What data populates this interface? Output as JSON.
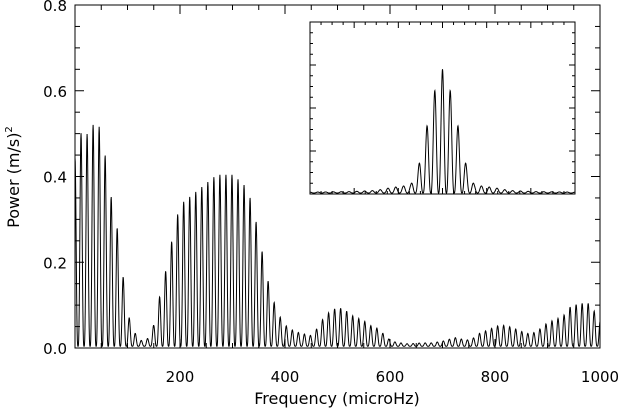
{
  "chart_data": {
    "type": "line",
    "title": "",
    "xlabel": "Frequency (microHz)",
    "ylabel": "Power (m/s)",
    "ylabel_superscript": "2",
    "xlim": [
      0,
      1000
    ],
    "ylim": [
      0.0,
      0.8
    ],
    "x_ticks": [
      200,
      400,
      600,
      800,
      1000
    ],
    "x_tick_labels": [
      "200",
      "400",
      "600",
      "800",
      "1000"
    ],
    "y_ticks": [
      0.0,
      0.2,
      0.4,
      0.6,
      0.8
    ],
    "y_tick_labels": [
      "0.0",
      "0.2",
      "0.4",
      "0.6",
      "0.8"
    ],
    "grid": false,
    "legend": "none",
    "series": [
      {
        "color": "#000000",
        "style": "oscillating sidelobe pattern (spectral window)",
        "fringe_spacing": 11.5,
        "envelope": {
          "x": [
            0,
            10,
            20,
            30,
            40,
            50,
            60,
            70,
            80,
            90,
            100,
            110,
            120,
            130,
            140,
            150,
            160,
            170,
            180,
            190,
            200,
            210,
            220,
            230,
            240,
            250,
            260,
            270,
            280,
            290,
            300,
            310,
            320,
            330,
            340,
            350,
            360,
            370,
            380,
            390,
            400,
            410,
            420,
            430,
            440,
            450,
            460,
            470,
            480,
            490,
            500,
            510,
            520,
            530,
            540,
            550,
            560,
            570,
            580,
            590,
            600,
            610,
            620,
            630,
            640,
            650,
            660,
            670,
            680,
            690,
            700,
            710,
            720,
            730,
            740,
            750,
            760,
            770,
            780,
            790,
            800,
            810,
            820,
            830,
            840,
            850,
            860,
            870,
            880,
            890,
            900,
            910,
            920,
            930,
            940,
            950,
            960,
            970,
            980,
            990,
            1000
          ],
          "y": [
            0.44,
            0.5,
            0.48,
            0.53,
            0.5,
            0.52,
            0.42,
            0.34,
            0.28,
            0.18,
            0.08,
            0.04,
            0.02,
            0.01,
            0.02,
            0.05,
            0.11,
            0.16,
            0.22,
            0.28,
            0.33,
            0.34,
            0.35,
            0.36,
            0.37,
            0.38,
            0.39,
            0.4,
            0.4,
            0.4,
            0.4,
            0.39,
            0.38,
            0.36,
            0.32,
            0.26,
            0.2,
            0.14,
            0.1,
            0.07,
            0.05,
            0.04,
            0.035,
            0.03,
            0.028,
            0.025,
            0.04,
            0.06,
            0.075,
            0.085,
            0.09,
            0.088,
            0.08,
            0.07,
            0.065,
            0.06,
            0.05,
            0.045,
            0.04,
            0.025,
            0.015,
            0.01,
            0.008,
            0.006,
            0.006,
            0.007,
            0.008,
            0.008,
            0.008,
            0.01,
            0.012,
            0.015,
            0.02,
            0.02,
            0.015,
            0.015,
            0.02,
            0.03,
            0.035,
            0.04,
            0.045,
            0.05,
            0.048,
            0.045,
            0.04,
            0.035,
            0.03,
            0.03,
            0.035,
            0.045,
            0.055,
            0.06,
            0.065,
            0.07,
            0.09,
            0.095,
            0.1,
            0.1,
            0.1,
            0.08,
            0.06
          ]
        }
      }
    ],
    "inset": {
      "type": "line",
      "axis_labels": false,
      "series": [
        {
          "color": "#000000",
          "style": "spectral window peak with sidelobes",
          "peak_at_fraction": 0.5,
          "peak_relative_height": 0.75,
          "fringe_count_across": 34,
          "envelope": {
            "x": [
              0.0,
              0.15,
              0.25,
              0.3,
              0.35,
              0.38,
              0.4,
              0.42,
              0.44,
              0.46,
              0.48,
              0.5,
              0.52,
              0.54,
              0.56,
              0.58,
              0.6,
              0.62,
              0.65,
              0.7,
              0.75,
              0.85,
              1.0
            ],
            "y": [
              0.005,
              0.008,
              0.015,
              0.03,
              0.04,
              0.05,
              0.1,
              0.22,
              0.38,
              0.52,
              0.66,
              0.72,
              0.66,
              0.52,
              0.38,
              0.22,
              0.1,
              0.05,
              0.04,
              0.03,
              0.015,
              0.008,
              0.005
            ]
          }
        }
      ]
    }
  }
}
